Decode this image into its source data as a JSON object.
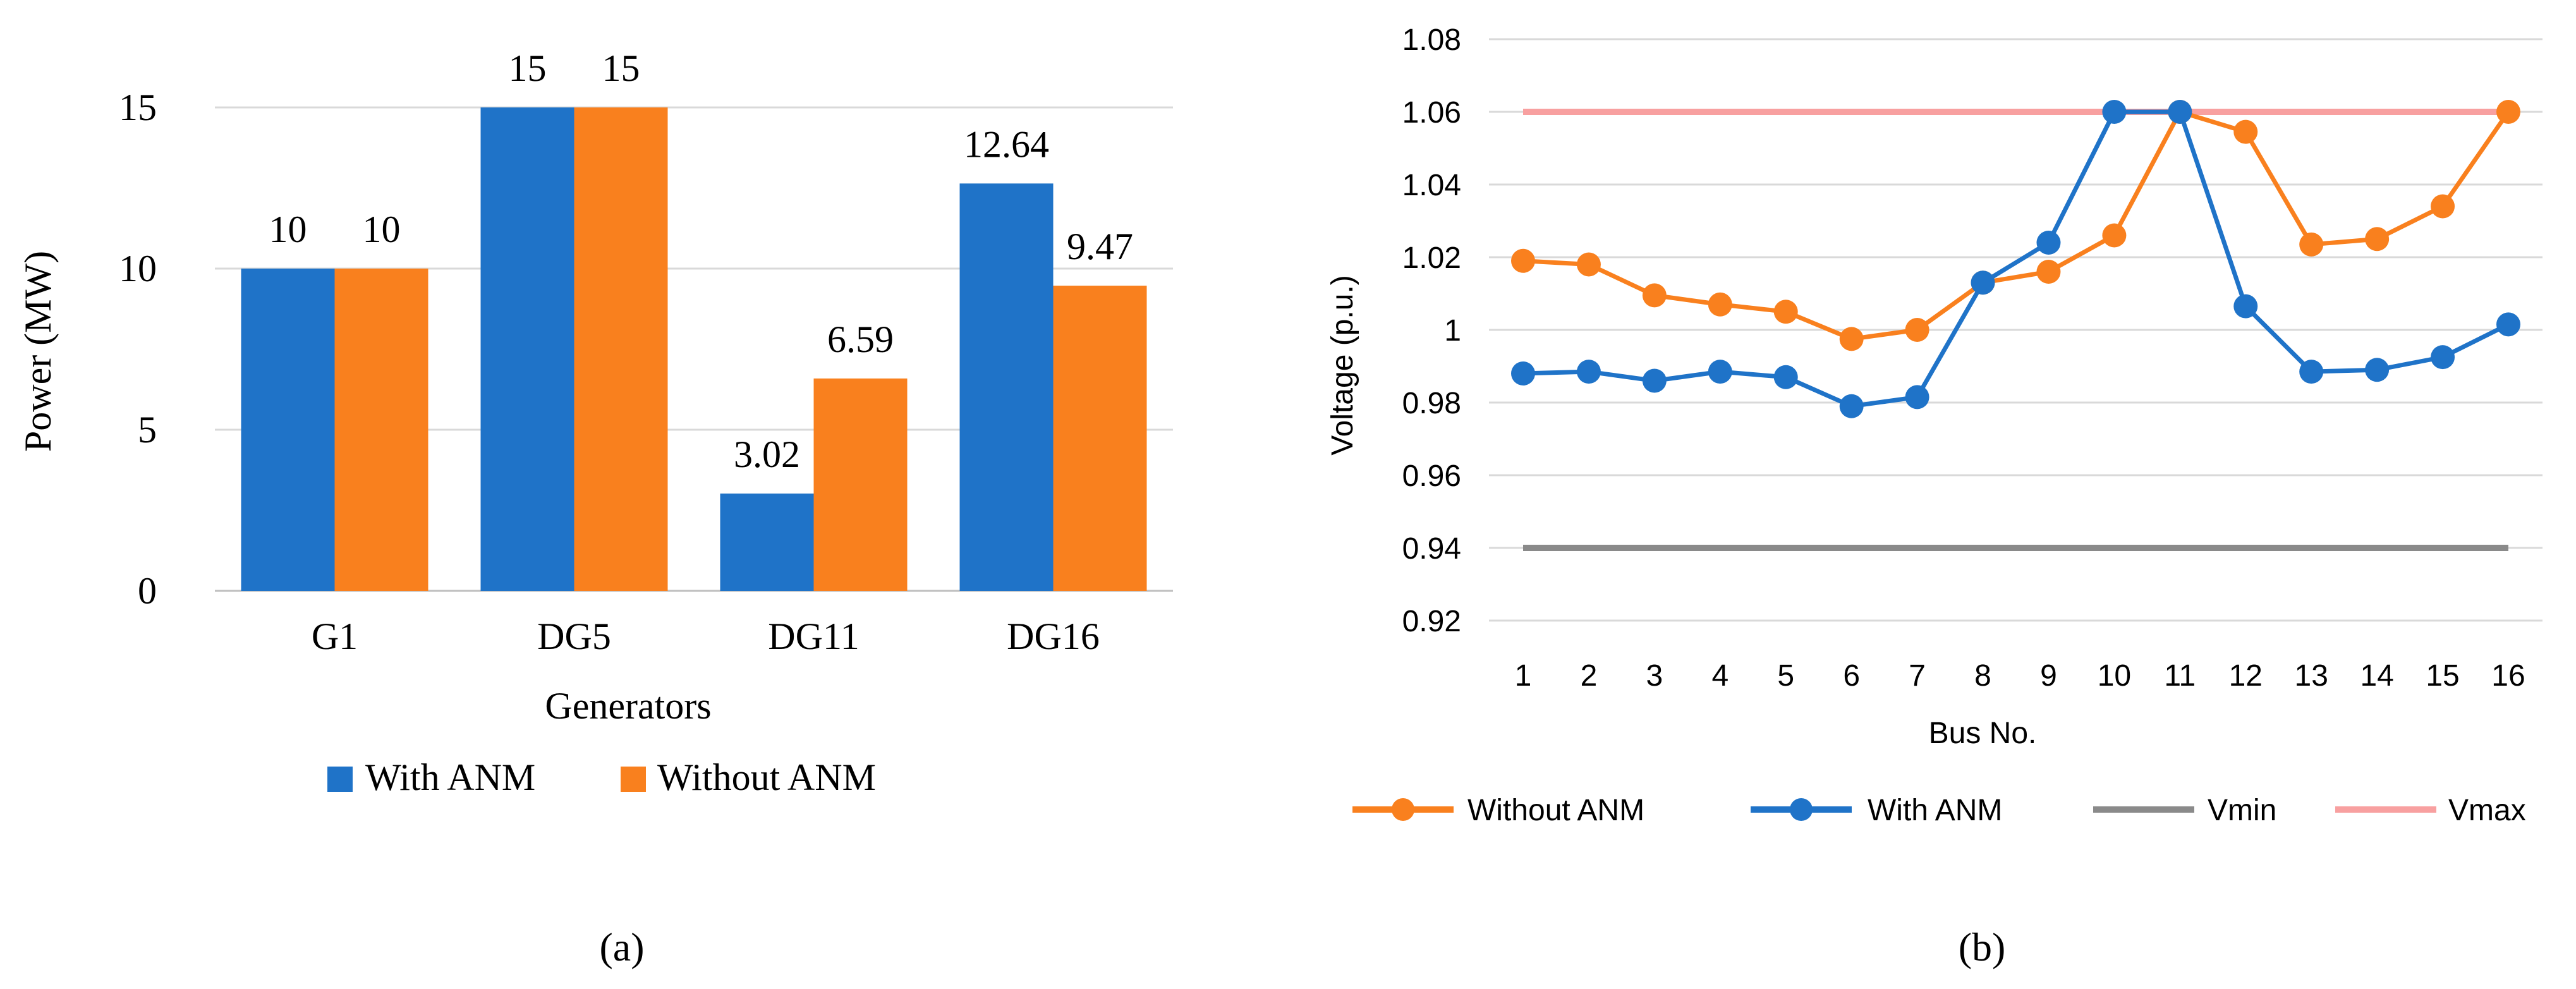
{
  "colors": {
    "with_anm": "#1F73C8",
    "without_anm": "#F9801E",
    "vmin": "#8A8A8A",
    "vmax": "#F8A0A0",
    "grid": "#D9D9D9",
    "axis": "#BFBFBF",
    "text": "#000000"
  },
  "chart_data": [
    {
      "id": "a",
      "type": "bar",
      "panel_label": "(a)",
      "categories": [
        "G1",
        "DG5",
        "DG11",
        "DG16"
      ],
      "series": [
        {
          "name": "With ANM",
          "color": "#1F73C8",
          "values": [
            10,
            15,
            3.02,
            12.64
          ],
          "labels": [
            "10",
            "15",
            "3.02",
            "12.64"
          ]
        },
        {
          "name": "Without ANM",
          "color": "#F9801E",
          "values": [
            10,
            15,
            6.59,
            9.47
          ],
          "labels": [
            "10",
            "15",
            "6.59",
            "9.47"
          ]
        }
      ],
      "xlabel": "Generators",
      "ylabel": "Power (MW)",
      "ylim": [
        0,
        15
      ],
      "yticks": [
        0,
        5,
        10,
        15
      ],
      "ytick_labels": [
        "0",
        "5",
        "10",
        "15"
      ],
      "grid": true,
      "legend": "bottom"
    },
    {
      "id": "b",
      "type": "line",
      "panel_label": "(b)",
      "x": [
        1,
        2,
        3,
        4,
        5,
        6,
        7,
        8,
        9,
        10,
        11,
        12,
        13,
        14,
        15,
        16
      ],
      "x_labels": [
        "1",
        "2",
        "3",
        "4",
        "5",
        "6",
        "7",
        "8",
        "9",
        "10",
        "11",
        "12",
        "13",
        "14",
        "15",
        "16"
      ],
      "series": [
        {
          "name": "Without ANM",
          "color": "#F9801E",
          "markers": true,
          "values": [
            1.019,
            1.018,
            1.0095,
            1.007,
            1.005,
            0.9975,
            1.0,
            1.013,
            1.016,
            1.026,
            1.06,
            1.0545,
            1.0235,
            1.025,
            1.034,
            1.06
          ]
        },
        {
          "name": "With ANM",
          "color": "#1F73C8",
          "markers": true,
          "values": [
            0.988,
            0.9885,
            0.986,
            0.9885,
            0.987,
            0.979,
            0.9815,
            1.013,
            1.024,
            1.06,
            1.06,
            1.0065,
            0.9885,
            0.989,
            0.9925,
            1.0015
          ]
        },
        {
          "name": "Vmin",
          "color": "#8A8A8A",
          "markers": false,
          "values": [
            0.94,
            0.94,
            0.94,
            0.94,
            0.94,
            0.94,
            0.94,
            0.94,
            0.94,
            0.94,
            0.94,
            0.94,
            0.94,
            0.94,
            0.94,
            0.94
          ]
        },
        {
          "name": "Vmax",
          "color": "#F8A0A0",
          "markers": false,
          "values": [
            1.06,
            1.06,
            1.06,
            1.06,
            1.06,
            1.06,
            1.06,
            1.06,
            1.06,
            1.06,
            1.06,
            1.06,
            1.06,
            1.06,
            1.06,
            1.06
          ]
        }
      ],
      "xlabel": "Bus No.",
      "ylabel": "Voltage (p.u.)",
      "ylim": [
        0.92,
        1.08
      ],
      "yticks": [
        0.92,
        0.94,
        0.96,
        0.98,
        1.0,
        1.02,
        1.04,
        1.06,
        1.08
      ],
      "ytick_labels": [
        "0.92",
        "0.94",
        "0.96",
        "0.98",
        "1",
        "1.02",
        "1.04",
        "1.06",
        "1.08"
      ],
      "grid": true,
      "legend": "bottom"
    }
  ]
}
